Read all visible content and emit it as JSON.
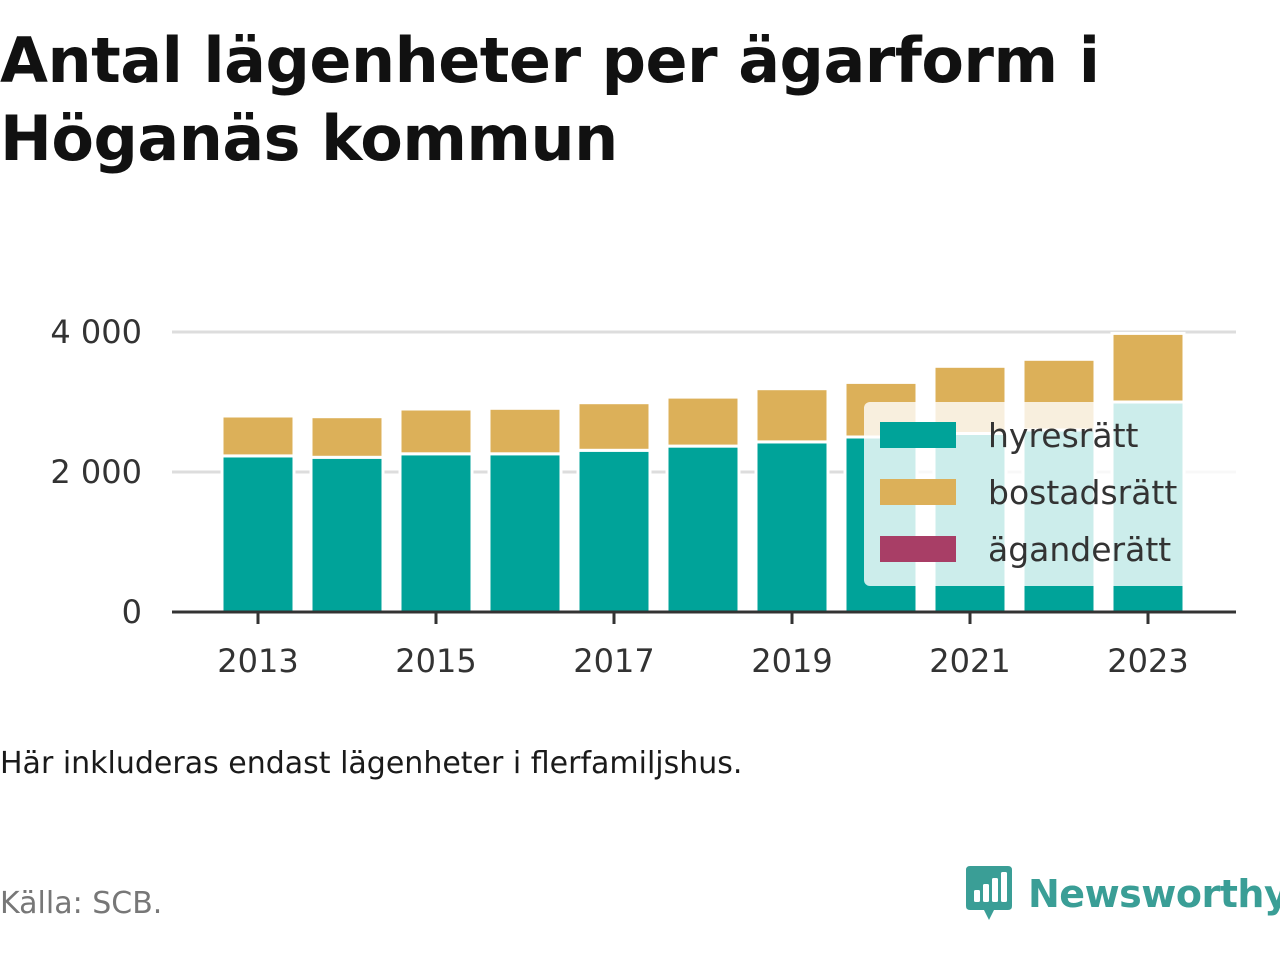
{
  "title": "Antal lägenheter per ägarform i Höganäs kommun",
  "caption": "Här inkluderas endast lägenheter i flerfamiljshus.",
  "source": "Källa: SCB.",
  "brand": {
    "name": "Newsworthy",
    "icon": "bar-chart-speech-bubble-icon",
    "color": "#3a9e96"
  },
  "chart_data": {
    "type": "bar",
    "stacked": true,
    "x": [
      2013,
      2014,
      2015,
      2016,
      2017,
      2018,
      2019,
      2020,
      2021,
      2022,
      2023
    ],
    "x_ticks": [
      "2013",
      "2015",
      "2017",
      "2019",
      "2021",
      "2023"
    ],
    "y_ticks": [
      {
        "value": 0,
        "label": "0"
      },
      {
        "value": 2000,
        "label": "2 000"
      },
      {
        "value": 4000,
        "label": "4 000"
      }
    ],
    "ylim": [
      0,
      4000
    ],
    "grid": true,
    "legend_position": "right",
    "series": [
      {
        "name": "hyresrätt",
        "color": "#00a399",
        "values": [
          2230,
          2210,
          2260,
          2260,
          2310,
          2370,
          2430,
          2500,
          2550,
          2600,
          3000
        ]
      },
      {
        "name": "bostadsrätt",
        "color": "#dcb059",
        "values": [
          570,
          580,
          640,
          650,
          680,
          700,
          760,
          780,
          960,
          1010,
          980
        ]
      },
      {
        "name": "äganderätt",
        "color": "#a83e66",
        "values": [
          0,
          0,
          0,
          0,
          0,
          0,
          0,
          0,
          0,
          0,
          0
        ]
      }
    ]
  }
}
